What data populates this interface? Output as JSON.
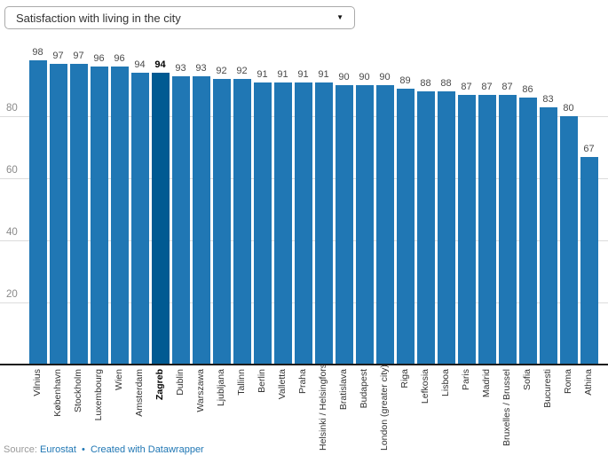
{
  "dropdown": {
    "selected": "Satisfaction with living in the city",
    "caret_icon": "▼"
  },
  "chart_data": {
    "type": "bar",
    "title": "Satisfaction with living in the city",
    "categories": [
      "Vilnius",
      "København",
      "Stockholm",
      "Luxembourg",
      "Wien",
      "Amsterdam",
      "Zagreb",
      "Dublin",
      "Warszawa",
      "Ljubljana",
      "Tallinn",
      "Berlin",
      "Valletta",
      "Praha",
      "Helsinki / Helsingfors",
      "Bratislava",
      "Budapest",
      "London (greater city)",
      "Riga",
      "Lefkosia",
      "Lisboa",
      "Paris",
      "Madrid",
      "Bruxelles / Brussel",
      "Sofia",
      "Bucuresti",
      "Roma",
      "Athina"
    ],
    "values": [
      98,
      97,
      97,
      96,
      96,
      94,
      94,
      93,
      93,
      92,
      92,
      91,
      91,
      91,
      91,
      90,
      90,
      90,
      89,
      88,
      88,
      87,
      87,
      87,
      86,
      83,
      80,
      67
    ],
    "highlight_category": "Zagreb",
    "highlight_index": 6,
    "yticks": [
      20,
      40,
      60,
      80
    ],
    "ylim": [
      0,
      100
    ],
    "grid": true,
    "legend_position": "none",
    "bar_color": "#2077b4",
    "highlight_color": "#005a92",
    "value_labels_shown": true
  },
  "footer": {
    "prefix": "Source:",
    "source_link": "Eurostat",
    "separator": "•",
    "credit_link": "Created with Datawrapper",
    "link_color": "#2077b4"
  }
}
